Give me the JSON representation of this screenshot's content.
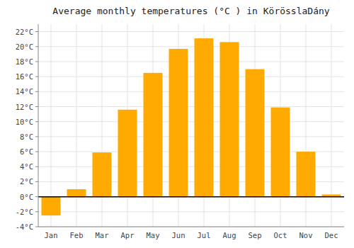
{
  "chart_data": {
    "type": "bar",
    "title": "Average monthly temperatures (°C ) in KörösslaDány",
    "categories": [
      "Jan",
      "Feb",
      "Mar",
      "Apr",
      "May",
      "Jun",
      "Jul",
      "Aug",
      "Sep",
      "Oct",
      "Nov",
      "Dec"
    ],
    "values": [
      -2.5,
      1.0,
      5.9,
      11.6,
      16.5,
      19.7,
      21.1,
      20.6,
      17.0,
      11.9,
      6.0,
      0.3
    ],
    "color": "#FFAA00",
    "ylim": [
      -4,
      23
    ],
    "yticks": [
      {
        "value": -4,
        "label": "-4°C"
      },
      {
        "value": -2,
        "label": "-2°C"
      },
      {
        "value": 0,
        "label": "0°C"
      },
      {
        "value": 2,
        "label": "2°C"
      },
      {
        "value": 4,
        "label": "4°C"
      },
      {
        "value": 6,
        "label": "6°C"
      },
      {
        "value": 8,
        "label": "8°C"
      },
      {
        "value": 10,
        "label": "10°C"
      },
      {
        "value": 12,
        "label": "12°C"
      },
      {
        "value": 14,
        "label": "14°C"
      },
      {
        "value": 16,
        "label": "16°C"
      },
      {
        "value": 18,
        "label": "18°C"
      },
      {
        "value": 20,
        "label": "20°C"
      },
      {
        "value": 22,
        "label": "22°C"
      }
    ],
    "grid": true
  }
}
